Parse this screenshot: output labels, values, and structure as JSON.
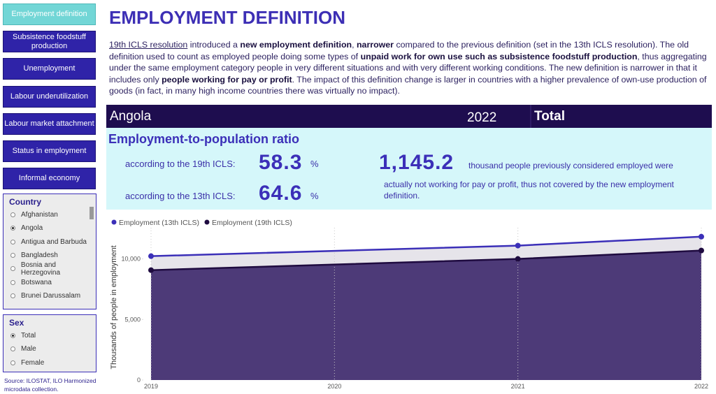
{
  "nav": {
    "items": [
      "Employment definition",
      "Subsistence foodstuff production",
      "Unemployment",
      "Labour underutilization",
      "Labour market attachment",
      "Status in employment",
      "Informal economy"
    ],
    "active_index": 0
  },
  "filters": {
    "country": {
      "title": "Country",
      "options": [
        "Afghanistan",
        "Angola",
        "Antigua and Barbuda",
        "Bangladesh",
        "Bosnia and Herzegovina",
        "Botswana",
        "Brunei Darussalam"
      ],
      "selected_index": 1
    },
    "sex": {
      "title": "Sex",
      "options": [
        "Total",
        "Male",
        "Female"
      ],
      "selected_index": 0
    }
  },
  "source": "Source: ILOSTAT, ILO Harmonized microdata collection.",
  "header": {
    "title": "EMPLOYMENT DEFINITION",
    "paragraph": [
      "19th ICLS resolution",
      " introduced a ",
      "new employment definition",
      ", ",
      "narrower",
      " compared to the previous definition (set in the 13th ICLS resolution). The old definition used to count as employed people doing some types of ",
      "unpaid work for own use such as subsistence foodstuff production",
      ", thus aggregating under the same employment category people in very different situations and with very different working conditions. The new definition is narrower in that it includes only ",
      "people working for pay or profit",
      ". The impact of this definition change is larger in countries with a higher prevalence of own-use production of goods (in fact, in many high income countries there was virtually no impact)."
    ]
  },
  "banner": {
    "country": "Angola",
    "year": "2022",
    "sex": "Total"
  },
  "kpi": {
    "title": "Employment-to-population ratio",
    "label_19th": "according to the 19th ICLS:",
    "value_19th": 58.3,
    "label_13th": "according to the 13th ICLS:",
    "value_13th": 64.6,
    "unit": "%",
    "difference": "1,145.2",
    "difference_text": [
      "thousand people previously considered employed were",
      "actually not working for pay or profit, thus not covered by the new employment definition."
    ]
  },
  "chart_data": {
    "type": "area",
    "y_label": "Thousands of people in employment",
    "x": [
      2019,
      2021,
      2022
    ],
    "xlim": [
      2019,
      2022
    ],
    "xticks": [
      2019,
      2020,
      2021,
      2022
    ],
    "ylim": [
      0,
      12000
    ],
    "yticks": [
      0,
      {
        "value": 5000,
        "label": "5,000"
      },
      {
        "value": 10000,
        "label": "10,000"
      }
    ],
    "grid": true,
    "legend": "top-left",
    "series": [
      {
        "name": "Employment (13th ICLS)",
        "color": "#3b2fb8",
        "fill": "#e6e4ea",
        "values": [
          10230,
          11100,
          11840
        ]
      },
      {
        "name": "Employment (19th ICLS)",
        "color": "#1f0b40",
        "fill": "#4d3a78",
        "values": [
          9075,
          10000,
          10695
        ]
      }
    ]
  }
}
